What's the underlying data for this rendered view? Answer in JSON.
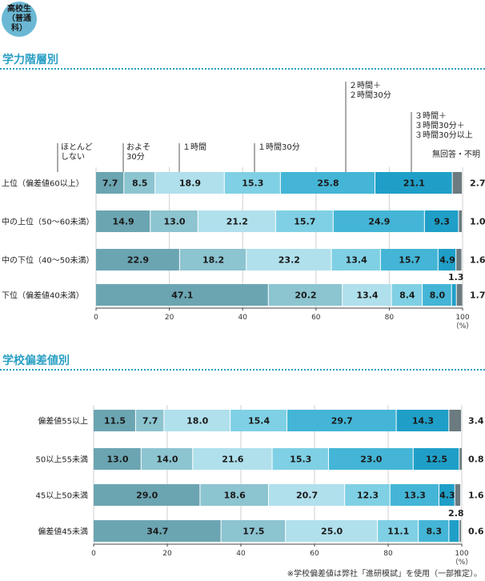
{
  "badge": {
    "line1": "高校生",
    "line2": "（普通科）"
  },
  "sections": [
    {
      "title": "学力階層別"
    },
    {
      "title": "学校偏差値別"
    }
  ],
  "footnote": "※学校偏差値は弊社「進研模試」を使用（一部推定）。",
  "colors": [
    "#6ba5b2",
    "#8cc4d0",
    "#b0e0ec",
    "#7fd0e4",
    "#44b5d6",
    "#1f9fc8",
    "#6b7b80"
  ],
  "chart_data": [
    {
      "type": "bar",
      "orientation": "horizontal",
      "stacked": true,
      "categories": [
        "上位（偏差値60以上）",
        "中の上位（50～60未満）",
        "中の下位（40～50未満）",
        "下位（偏差値40未満）"
      ],
      "segment_names": [
        "ほとんどしない",
        "およそ30分",
        "１時間",
        "１時間30分",
        "２時間＋２時間30分",
        "３時間＋３時間30分＋３時間30分以上",
        "無回答・不明"
      ],
      "segment_labels": [
        [
          "ほとんど",
          "しない"
        ],
        [
          "およそ",
          "30分"
        ],
        [
          "１時間"
        ],
        [
          "１時間30分"
        ],
        [
          "２時間＋",
          "２時間30分"
        ],
        [
          "３時間＋",
          "３時間30分＋",
          "３時間30分以上"
        ],
        [
          "無回答・不明"
        ]
      ],
      "rows": [
        [
          7.7,
          8.5,
          18.9,
          15.3,
          25.8,
          21.1,
          2.7
        ],
        [
          14.9,
          13.0,
          21.2,
          15.7,
          24.9,
          9.3,
          1.0
        ],
        [
          22.9,
          18.2,
          23.2,
          13.4,
          15.7,
          4.9,
          1.6
        ],
        [
          47.1,
          20.2,
          13.4,
          8.4,
          8.0,
          1.3,
          1.7
        ]
      ],
      "xticks": [
        0,
        20,
        40,
        60,
        80,
        100
      ],
      "xunit": "（%）",
      "xlim": [
        0,
        100
      ]
    },
    {
      "type": "bar",
      "orientation": "horizontal",
      "stacked": true,
      "categories": [
        "偏差値55以上",
        "50以上55未満",
        "45以上50未満",
        "偏差値45未満"
      ],
      "rows": [
        [
          11.5,
          7.7,
          18.0,
          15.4,
          29.7,
          14.3,
          3.4
        ],
        [
          13.0,
          14.0,
          21.6,
          15.3,
          23.0,
          12.5,
          0.8
        ],
        [
          29.0,
          18.6,
          20.7,
          12.3,
          13.3,
          4.3,
          1.6
        ],
        [
          34.7,
          17.5,
          25.0,
          11.1,
          8.3,
          2.8,
          0.6
        ]
      ],
      "xticks": [
        0,
        20,
        40,
        60,
        80,
        100
      ],
      "xunit": "（%）",
      "xlim": [
        0,
        100
      ]
    }
  ]
}
